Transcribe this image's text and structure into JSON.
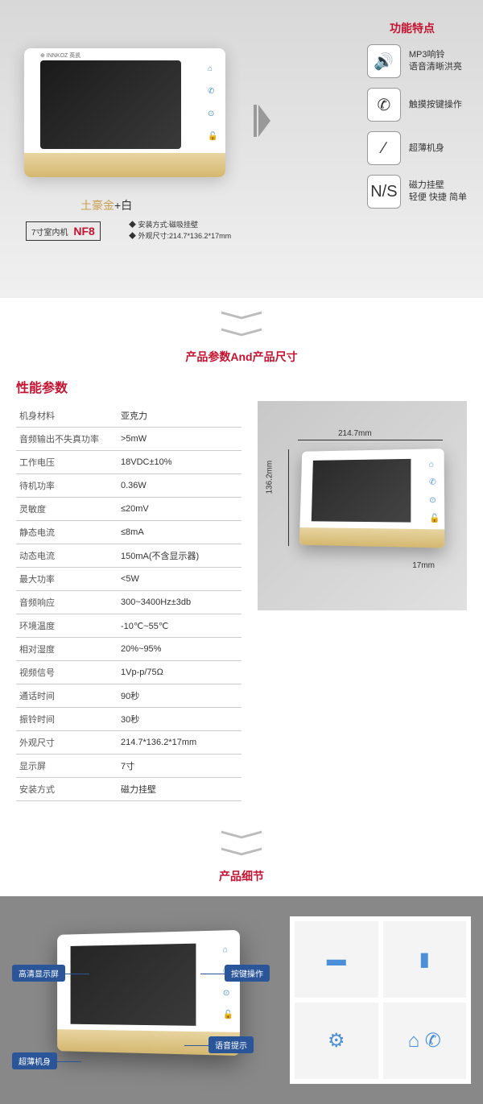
{
  "section1": {
    "features_title": "功能特点",
    "color_gold": "土豪金",
    "color_plus": "+",
    "color_white": "白",
    "model_prefix": "7寸室内机",
    "model": "NF8",
    "mini_spec1": "安装方式:磁吸挂壁",
    "mini_spec2": "外观尺寸:214.7*136.2*17mm",
    "logo": "⊕ INNKOZ 英凯",
    "features": [
      {
        "icon": "🔊",
        "line1": "MP3响铃",
        "line2": "语音清晰洪亮"
      },
      {
        "icon": "✆",
        "line1": "触摸按键操作",
        "line2": ""
      },
      {
        "icon": "∕",
        "line1": "超薄机身",
        "line2": ""
      },
      {
        "icon": "N/S",
        "line1": "磁力挂壁",
        "line2": "轻便 快捷 简单"
      }
    ]
  },
  "section2": {
    "header": "产品参数And产品尺寸",
    "table_title": "性能参数",
    "rows": [
      [
        "机身材料",
        "亚克力"
      ],
      [
        "音频输出不失真功率",
        ">5mW"
      ],
      [
        "工作电压",
        "18VDC±10%"
      ],
      [
        "待机功率",
        "0.36W"
      ],
      [
        "灵敏度",
        "≤20mV"
      ],
      [
        "静态电流",
        "≤8mA"
      ],
      [
        "动态电流",
        "150mA(不含显示器)"
      ],
      [
        "最大功率",
        "<5W"
      ],
      [
        "音频响应",
        "300~3400Hz±3db"
      ],
      [
        "环境温度",
        "-10℃~55℃"
      ],
      [
        "相对湿度",
        "20%~95%"
      ],
      [
        "视频信号",
        "1Vp-p/75Ω"
      ],
      [
        "通话时间",
        "90秒"
      ],
      [
        "振铃时间",
        "30秒"
      ],
      [
        "外观尺寸",
        "214.7*136.2*17mm"
      ],
      [
        "显示屏",
        "7寸"
      ],
      [
        "安装方式",
        "磁力挂壁"
      ]
    ],
    "dim_w": "214.7mm",
    "dim_h": "136.2mm",
    "dim_d": "17mm"
  },
  "section3": {
    "header": "产品细节",
    "callouts": [
      "高清显示屏",
      "超薄机身",
      "按键操作",
      "语音提示"
    ],
    "grid_icons": [
      "▬",
      "▮",
      "⚙",
      "⌂ ✆"
    ]
  },
  "colors": {
    "accent": "#c41230",
    "gold": "#c9a050",
    "blue": "#2a5599"
  }
}
